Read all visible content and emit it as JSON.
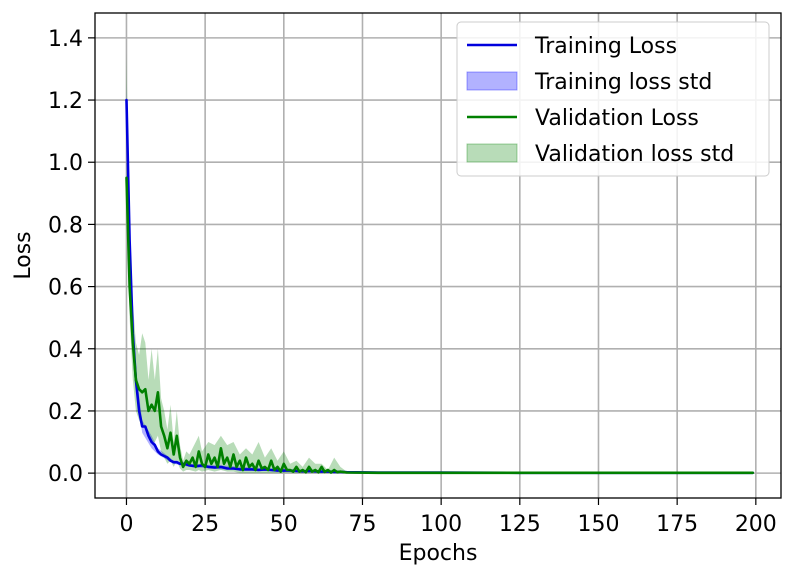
{
  "chart_data": {
    "type": "line",
    "title": "",
    "xlabel": "Epochs",
    "ylabel": "Loss",
    "xlim": [
      -10,
      208
    ],
    "ylim": [
      -0.08,
      1.48
    ],
    "xticks": [
      0,
      25,
      50,
      75,
      100,
      125,
      150,
      175,
      200
    ],
    "yticks": [
      0.0,
      0.2,
      0.4,
      0.6,
      0.8,
      1.0,
      1.2,
      1.4
    ],
    "xtick_labels": [
      "0",
      "25",
      "50",
      "75",
      "100",
      "125",
      "150",
      "175",
      "200"
    ],
    "ytick_labels": [
      "0.0",
      "0.2",
      "0.4",
      "0.6",
      "0.8",
      "1.0",
      "1.2",
      "1.4"
    ],
    "grid": true,
    "legend_position": "top-right",
    "series": [
      {
        "name": "Training Loss",
        "kind": "line",
        "color": "#0000dd",
        "x": [
          0,
          1,
          2,
          3,
          4,
          5,
          6,
          7,
          8,
          9,
          10,
          11,
          12,
          13,
          14,
          15,
          16,
          17,
          18,
          19,
          20,
          22,
          24,
          26,
          28,
          30,
          32,
          34,
          36,
          38,
          40,
          42,
          44,
          46,
          48,
          50,
          52,
          54,
          56,
          58,
          60,
          62,
          64,
          66,
          68,
          70,
          80,
          100,
          125,
          150,
          175,
          199
        ],
        "y": [
          1.2,
          0.75,
          0.45,
          0.3,
          0.2,
          0.15,
          0.15,
          0.12,
          0.1,
          0.09,
          0.07,
          0.06,
          0.055,
          0.05,
          0.04,
          0.035,
          0.035,
          0.03,
          0.03,
          0.028,
          0.025,
          0.022,
          0.025,
          0.02,
          0.018,
          0.02,
          0.015,
          0.015,
          0.012,
          0.012,
          0.012,
          0.01,
          0.012,
          0.01,
          0.008,
          0.008,
          0.008,
          0.007,
          0.006,
          0.007,
          0.006,
          0.005,
          0.005,
          0.004,
          0.004,
          0.003,
          0.002,
          0.002,
          0.001,
          0.001,
          0.001,
          0.001
        ]
      },
      {
        "name": "Training loss std",
        "kind": "band",
        "color": "#0000ff",
        "opacity": 0.3,
        "x": [
          0,
          1,
          2,
          3,
          5,
          8,
          10,
          15,
          20,
          30,
          50,
          70,
          100,
          199
        ],
        "lower": [
          1.15,
          0.7,
          0.42,
          0.27,
          0.13,
          0.08,
          0.06,
          0.03,
          0.02,
          0.012,
          0.005,
          0.002,
          0.001,
          0.0005
        ],
        "upper": [
          1.25,
          0.8,
          0.48,
          0.33,
          0.17,
          0.12,
          0.08,
          0.04,
          0.03,
          0.025,
          0.012,
          0.004,
          0.003,
          0.002
        ]
      },
      {
        "name": "Validation Loss",
        "kind": "line",
        "color": "#008000",
        "x": [
          0,
          1,
          2,
          3,
          4,
          5,
          6,
          7,
          8,
          9,
          10,
          11,
          12,
          13,
          14,
          15,
          16,
          17,
          18,
          19,
          20,
          21,
          22,
          23,
          24,
          25,
          26,
          27,
          28,
          29,
          30,
          31,
          32,
          33,
          34,
          35,
          36,
          37,
          38,
          39,
          40,
          41,
          42,
          43,
          44,
          45,
          46,
          47,
          48,
          49,
          50,
          51,
          52,
          53,
          54,
          55,
          56,
          57,
          58,
          59,
          60,
          61,
          62,
          63,
          64,
          65,
          66,
          67,
          68,
          70,
          80,
          100,
          125,
          150,
          175,
          199
        ],
        "y": [
          0.95,
          0.6,
          0.42,
          0.3,
          0.27,
          0.26,
          0.27,
          0.2,
          0.22,
          0.2,
          0.26,
          0.15,
          0.12,
          0.08,
          0.13,
          0.06,
          0.12,
          0.05,
          0.02,
          0.04,
          0.03,
          0.05,
          0.02,
          0.07,
          0.03,
          0.02,
          0.06,
          0.03,
          0.05,
          0.02,
          0.08,
          0.03,
          0.05,
          0.02,
          0.06,
          0.02,
          0.04,
          0.01,
          0.05,
          0.02,
          0.03,
          0.01,
          0.04,
          0.015,
          0.02,
          0.01,
          0.04,
          0.01,
          0.02,
          0.005,
          0.03,
          0.01,
          0.01,
          0.005,
          0.02,
          0.005,
          0.01,
          0.003,
          0.02,
          0.005,
          0.01,
          0.003,
          0.02,
          0.004,
          0.01,
          0.002,
          0.01,
          0.003,
          0.005,
          0.002,
          0.001,
          0.001,
          0.001,
          0.001,
          0.001,
          0.001
        ]
      },
      {
        "name": "Validation loss std",
        "kind": "band",
        "color": "#008000",
        "opacity": 0.28,
        "x": [
          0,
          1,
          2,
          3,
          4,
          5,
          6,
          7,
          8,
          9,
          10,
          11,
          12,
          13,
          14,
          15,
          16,
          17,
          18,
          19,
          20,
          22,
          23,
          24,
          26,
          28,
          30,
          32,
          34,
          36,
          38,
          40,
          42,
          44,
          46,
          48,
          50,
          52,
          54,
          56,
          58,
          60,
          62,
          64,
          66,
          68,
          70,
          80,
          100,
          199
        ],
        "lower": [
          0.85,
          0.5,
          0.3,
          0.2,
          0.17,
          0.15,
          0.15,
          0.11,
          0.1,
          0.1,
          0.12,
          0.07,
          0.05,
          0.03,
          0.04,
          0.02,
          0.04,
          0.015,
          0.005,
          0.01,
          0.01,
          0.005,
          0.01,
          0.005,
          0.01,
          0.005,
          0.01,
          0.005,
          0.005,
          0.0,
          0.0,
          0.0,
          0.0,
          0.0,
          0.0,
          0.0,
          0.0,
          0.0,
          0.0,
          0.0,
          0.0,
          0.0,
          0.0,
          0.0,
          0.0,
          0.0,
          0.0,
          0.0,
          0.0,
          0.0
        ],
        "upper": [
          1.35,
          0.7,
          0.55,
          0.42,
          0.38,
          0.45,
          0.42,
          0.3,
          0.4,
          0.3,
          0.4,
          0.24,
          0.2,
          0.14,
          0.22,
          0.1,
          0.2,
          0.09,
          0.04,
          0.07,
          0.06,
          0.1,
          0.12,
          0.07,
          0.1,
          0.09,
          0.12,
          0.09,
          0.1,
          0.06,
          0.08,
          0.06,
          0.1,
          0.05,
          0.08,
          0.04,
          0.07,
          0.03,
          0.04,
          0.02,
          0.05,
          0.03,
          0.03,
          0.01,
          0.05,
          0.02,
          0.005,
          0.003,
          0.002,
          0.002
        ]
      }
    ]
  }
}
